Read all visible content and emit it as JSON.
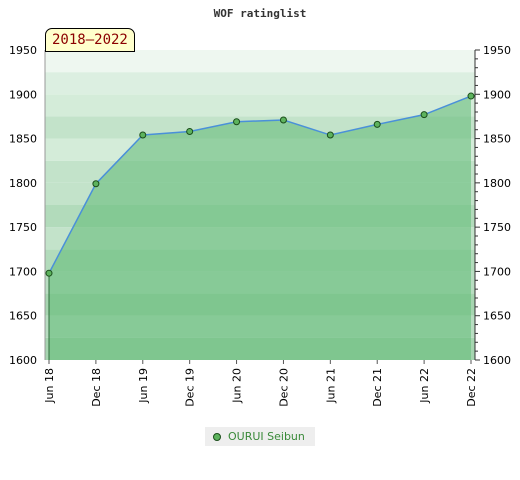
{
  "chart_data": {
    "type": "area",
    "title": "WOF ratinglist",
    "badge": "2018–2022",
    "categories": [
      "Jun 18",
      "Dec 18",
      "Jun 19",
      "Dec 19",
      "Jun 20",
      "Dec 20",
      "Jun 21",
      "Dec 21",
      "Jun 22",
      "Dec 22"
    ],
    "series": [
      {
        "name": "OURUI Seibun",
        "values": [
          1698,
          1799,
          1854,
          1858,
          1869,
          1871,
          1854,
          1866,
          1877,
          1898
        ]
      }
    ],
    "yticks": [
      1600,
      1650,
      1700,
      1750,
      1800,
      1850,
      1900,
      1950
    ],
    "ylim": [
      1600,
      1950
    ],
    "grid": true,
    "legend_position": "bottom-center",
    "colors": {
      "area_fill": "#5fba74",
      "line": "#4a90d9",
      "marker_fill": "#5db35d",
      "marker_edge": "#1a4d1a"
    }
  }
}
